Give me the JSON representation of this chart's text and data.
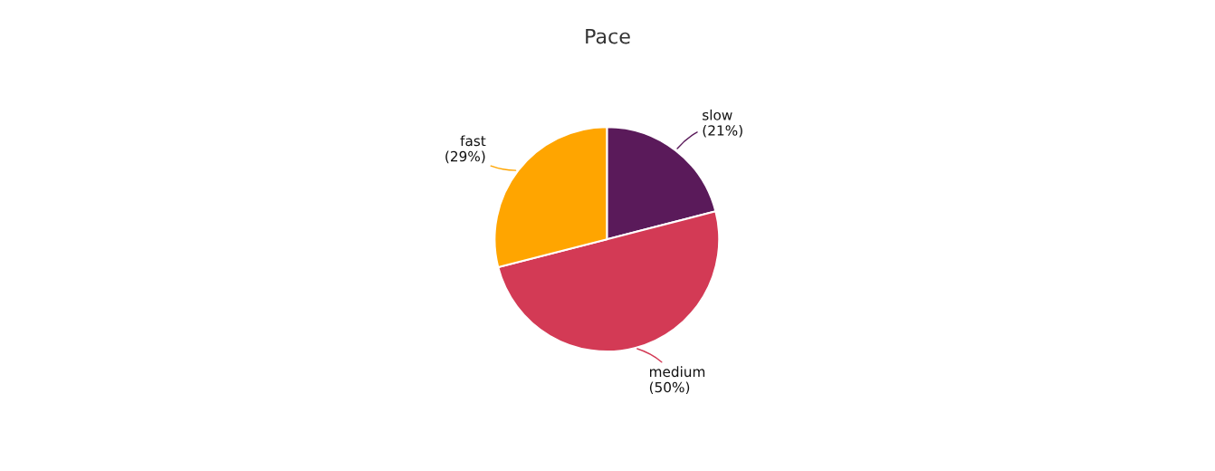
{
  "chart_data": {
    "type": "pie",
    "title": "Pace",
    "categories": [
      "slow",
      "medium",
      "fast"
    ],
    "values": [
      21,
      50,
      29
    ],
    "value_labels": [
      "(21%)",
      "(50%)",
      "(29%)"
    ],
    "colors": [
      "#5a1a5a",
      "#d33a55",
      "#ffa500"
    ],
    "legend": false
  }
}
